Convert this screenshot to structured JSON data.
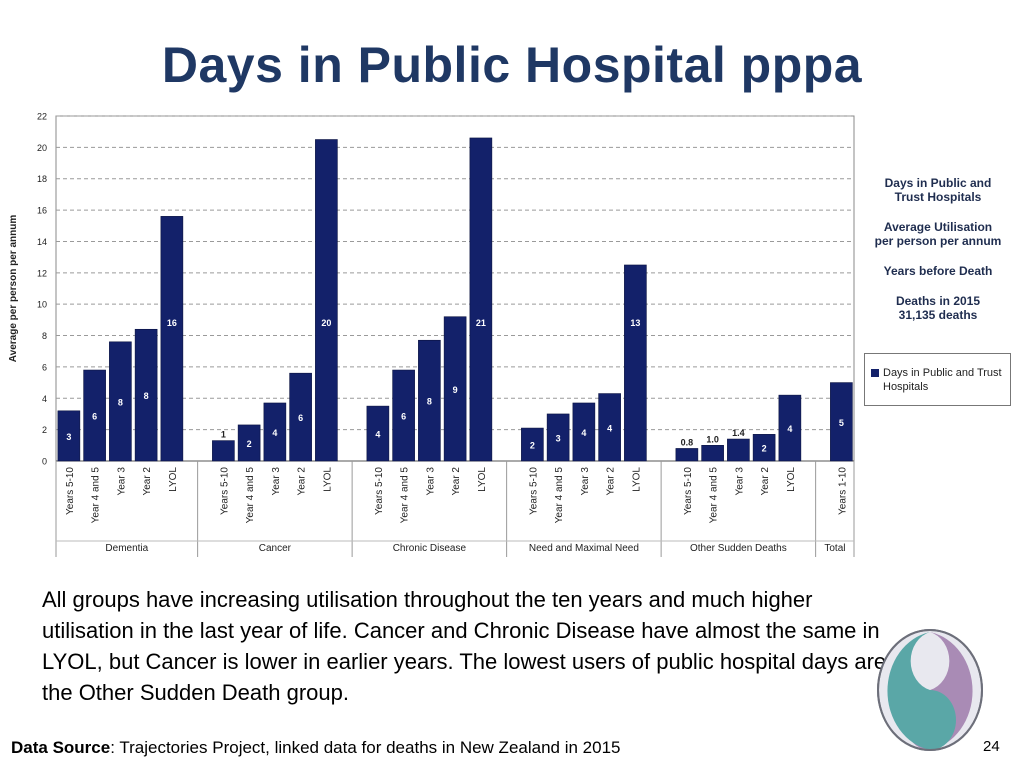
{
  "slide": {
    "title": "Days in Public Hospital pppa",
    "side_notes": [
      "Days in Public and\nTrust Hospitals",
      "Average Utilisation\nper person per annum",
      "Years before Death",
      "Deaths in 2015\n31,135 deaths"
    ],
    "body_text": "All groups have increasing utilisation throughout the ten years and much higher utilisation in the last year of life. Cancer and Chronic Disease have almost the same in LYOL, but Cancer is lower in earlier years. The lowest users of public hospital days are the Other Sudden Death group.",
    "footer_label": "Data Source",
    "footer_text": ": Trajectories Project, linked data for deaths in New Zealand in 2015",
    "page_number": "24"
  },
  "chart_data": {
    "type": "bar",
    "ylabel": "Average per person per annum",
    "ylim": [
      0,
      22
    ],
    "yticks": [
      0,
      2,
      4,
      6,
      8,
      10,
      12,
      14,
      16,
      18,
      20,
      22
    ],
    "grid": true,
    "bar_color": "#13216a",
    "legend": {
      "position": "right",
      "label": "Days in Public and Trust Hospitals"
    },
    "groups": [
      {
        "name": "Dementia",
        "categories": [
          "Years 5-10",
          "Year 4 and 5",
          "Year 3",
          "Year 2",
          "LYOL"
        ],
        "values": [
          3.2,
          5.8,
          7.6,
          8.4,
          15.6
        ],
        "labels": [
          "3",
          "6",
          "8",
          "8",
          "16"
        ]
      },
      {
        "name": "Cancer",
        "categories": [
          "Years 5-10",
          "Year 4 and 5",
          "Year 3",
          "Year 2",
          "LYOL"
        ],
        "values": [
          1.3,
          2.3,
          3.7,
          5.6,
          20.5
        ],
        "labels": [
          "1",
          "2",
          "4",
          "6",
          "20"
        ]
      },
      {
        "name": "Chronic Disease",
        "categories": [
          "Years 5-10",
          "Year 4 and 5",
          "Year 3",
          "Year 2",
          "LYOL"
        ],
        "values": [
          3.5,
          5.8,
          7.7,
          9.2,
          20.6
        ],
        "labels": [
          "4",
          "6",
          "8",
          "9",
          "21"
        ]
      },
      {
        "name": "Need and Maximal Need",
        "categories": [
          "Years 5-10",
          "Year 4 and 5",
          "Year 3",
          "Year 2",
          "LYOL"
        ],
        "values": [
          2.1,
          3.0,
          3.7,
          4.3,
          12.5
        ],
        "labels": [
          "2",
          "3",
          "4",
          "4",
          "13"
        ]
      },
      {
        "name": "Other Sudden Deaths",
        "categories": [
          "Years 5-10",
          "Year 4 and 5",
          "Year 3",
          "Year 2",
          "LYOL"
        ],
        "values": [
          0.8,
          1.0,
          1.4,
          1.7,
          4.2
        ],
        "labels": [
          "0.8",
          "1.0",
          "1.4",
          "2",
          "4"
        ]
      },
      {
        "name": "Total",
        "categories": [
          "Years 1-10"
        ],
        "values": [
          5.0
        ],
        "labels": [
          "5"
        ]
      }
    ]
  }
}
